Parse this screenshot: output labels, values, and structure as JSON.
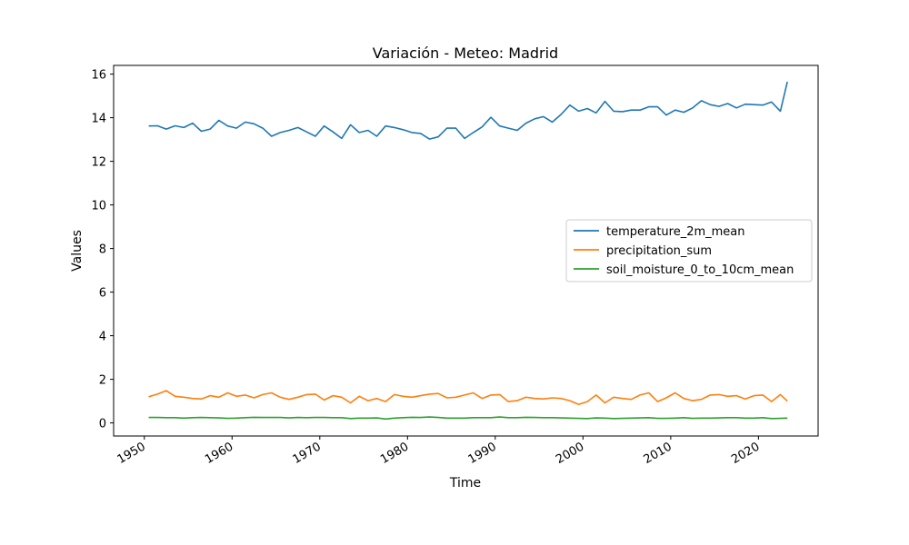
{
  "chart_data": {
    "type": "line",
    "title": "Variación - Meteo: Madrid",
    "xlabel": "Time",
    "ylabel": "Values",
    "xlim": [
      1946.5,
      2026.8
    ],
    "ylim": [
      -0.6,
      16.4
    ],
    "x_ticks": [
      1950,
      1960,
      1970,
      1980,
      1990,
      2000,
      2010,
      2020
    ],
    "y_ticks": [
      0,
      2,
      4,
      6,
      8,
      10,
      12,
      14,
      16
    ],
    "legend_position": "center-right",
    "grid": false,
    "x": [
      1950.5,
      1951.5,
      1952.5,
      1953.5,
      1954.5,
      1955.5,
      1956.5,
      1957.5,
      1958.5,
      1959.5,
      1960.5,
      1961.5,
      1962.5,
      1963.5,
      1964.5,
      1965.5,
      1966.5,
      1967.5,
      1968.5,
      1969.5,
      1970.5,
      1971.5,
      1972.5,
      1973.5,
      1974.5,
      1975.5,
      1976.5,
      1977.5,
      1978.5,
      1979.5,
      1980.5,
      1981.5,
      1982.5,
      1983.5,
      1984.5,
      1985.5,
      1986.5,
      1987.5,
      1988.5,
      1989.5,
      1990.5,
      1991.5,
      1992.5,
      1993.5,
      1994.5,
      1995.5,
      1996.5,
      1997.5,
      1998.5,
      1999.5,
      2000.5,
      2001.5,
      2002.5,
      2003.5,
      2004.5,
      2005.5,
      2006.5,
      2007.5,
      2008.5,
      2009.5,
      2010.5,
      2011.5,
      2012.5,
      2013.5,
      2014.5,
      2015.5,
      2016.5,
      2017.5,
      2018.5,
      2019.5,
      2020.5,
      2021.5,
      2022.5,
      2023.3
    ],
    "series": [
      {
        "name": "temperature_2m_mean",
        "color": "#1f77b4",
        "values": [
          13.62,
          13.63,
          13.48,
          13.63,
          13.55,
          13.75,
          13.38,
          13.48,
          13.88,
          13.62,
          13.52,
          13.8,
          13.72,
          13.52,
          13.15,
          13.32,
          13.42,
          13.55,
          13.35,
          13.15,
          13.62,
          13.35,
          13.05,
          13.68,
          13.32,
          13.42,
          13.15,
          13.62,
          13.55,
          13.45,
          13.32,
          13.28,
          13.02,
          13.12,
          13.52,
          13.52,
          13.05,
          13.32,
          13.58,
          14.02,
          13.62,
          13.52,
          13.42,
          13.75,
          13.95,
          14.05,
          13.8,
          14.15,
          14.58,
          14.3,
          14.42,
          14.22,
          14.75,
          14.3,
          14.28,
          14.35,
          14.35,
          14.5,
          14.5,
          14.12,
          14.35,
          14.25,
          14.45,
          14.78,
          14.6,
          14.52,
          14.65,
          14.45,
          14.62,
          14.6,
          14.58,
          14.72,
          14.3,
          15.65
        ]
      },
      {
        "name": "precipitation_sum",
        "color": "#ff7f0e",
        "values": [
          1.2,
          1.32,
          1.48,
          1.22,
          1.18,
          1.12,
          1.1,
          1.25,
          1.18,
          1.38,
          1.22,
          1.28,
          1.15,
          1.3,
          1.38,
          1.18,
          1.08,
          1.18,
          1.3,
          1.32,
          1.05,
          1.25,
          1.18,
          0.92,
          1.22,
          1.02,
          1.12,
          0.98,
          1.3,
          1.22,
          1.18,
          1.25,
          1.32,
          1.35,
          1.15,
          1.18,
          1.28,
          1.38,
          1.12,
          1.28,
          1.3,
          0.98,
          1.02,
          1.18,
          1.12,
          1.1,
          1.15,
          1.12,
          1.02,
          0.85,
          0.98,
          1.28,
          0.92,
          1.18,
          1.12,
          1.08,
          1.28,
          1.38,
          0.98,
          1.15,
          1.38,
          1.12,
          1.02,
          1.08,
          1.28,
          1.3,
          1.22,
          1.25,
          1.1,
          1.25,
          1.28,
          0.98,
          1.3,
          1.0
        ]
      },
      {
        "name": "soil_moisture_0_to_10cm_mean",
        "color": "#2ca02c",
        "values": [
          0.25,
          0.25,
          0.24,
          0.24,
          0.22,
          0.24,
          0.25,
          0.24,
          0.23,
          0.21,
          0.22,
          0.24,
          0.26,
          0.25,
          0.25,
          0.25,
          0.23,
          0.25,
          0.24,
          0.25,
          0.25,
          0.24,
          0.24,
          0.2,
          0.22,
          0.22,
          0.23,
          0.18,
          0.22,
          0.24,
          0.26,
          0.25,
          0.27,
          0.25,
          0.22,
          0.22,
          0.22,
          0.24,
          0.24,
          0.24,
          0.27,
          0.24,
          0.24,
          0.26,
          0.25,
          0.24,
          0.24,
          0.23,
          0.22,
          0.21,
          0.2,
          0.23,
          0.22,
          0.2,
          0.21,
          0.22,
          0.23,
          0.24,
          0.21,
          0.21,
          0.22,
          0.24,
          0.21,
          0.22,
          0.22,
          0.23,
          0.24,
          0.24,
          0.22,
          0.22,
          0.24,
          0.2,
          0.21,
          0.22
        ]
      }
    ]
  }
}
